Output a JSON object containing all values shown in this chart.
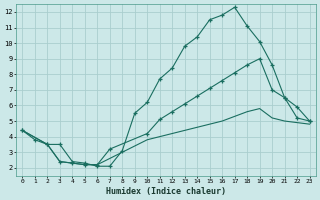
{
  "xlabel": "Humidex (Indice chaleur)",
  "xlim": [
    -0.5,
    23.5
  ],
  "ylim": [
    1.5,
    12.5
  ],
  "yticks": [
    2,
    3,
    4,
    5,
    6,
    7,
    8,
    9,
    10,
    11,
    12
  ],
  "xticks": [
    0,
    1,
    2,
    3,
    4,
    5,
    6,
    7,
    8,
    9,
    10,
    11,
    12,
    13,
    14,
    15,
    16,
    17,
    18,
    19,
    20,
    21,
    22,
    23
  ],
  "background_color": "#cce8e8",
  "grid_color": "#aacece",
  "line_color": "#1a6e60",
  "line1_x": [
    0,
    1,
    2,
    3,
    4,
    5,
    6,
    7,
    8,
    9,
    10,
    11,
    12,
    13,
    14,
    15,
    16,
    17,
    18,
    19,
    20,
    21,
    22,
    23
  ],
  "line1_y": [
    4.4,
    3.8,
    3.5,
    3.5,
    2.4,
    2.3,
    2.1,
    2.1,
    3.1,
    5.5,
    6.2,
    7.7,
    8.4,
    9.8,
    10.4,
    11.5,
    11.8,
    12.3,
    11.1,
    10.1,
    8.6,
    6.5,
    5.9,
    5.0
  ],
  "line2_x": [
    0,
    2,
    3,
    4,
    5,
    6,
    7,
    10,
    11,
    12,
    13,
    14,
    15,
    16,
    17,
    18,
    19,
    20,
    21,
    22,
    23
  ],
  "line2_y": [
    4.4,
    3.5,
    2.4,
    2.3,
    2.2,
    2.2,
    3.2,
    4.2,
    5.1,
    5.6,
    6.1,
    6.6,
    7.1,
    7.6,
    8.1,
    8.6,
    9.0,
    7.0,
    6.5,
    5.2,
    5.0
  ],
  "line3_x": [
    0,
    2,
    3,
    4,
    5,
    6,
    10,
    11,
    12,
    13,
    14,
    15,
    16,
    17,
    18,
    19,
    20,
    21,
    22,
    23
  ],
  "line3_y": [
    4.4,
    3.5,
    2.4,
    2.3,
    2.2,
    2.2,
    3.8,
    4.0,
    4.2,
    4.4,
    4.6,
    4.8,
    5.0,
    5.3,
    5.6,
    5.8,
    5.2,
    5.0,
    4.9,
    4.8
  ]
}
